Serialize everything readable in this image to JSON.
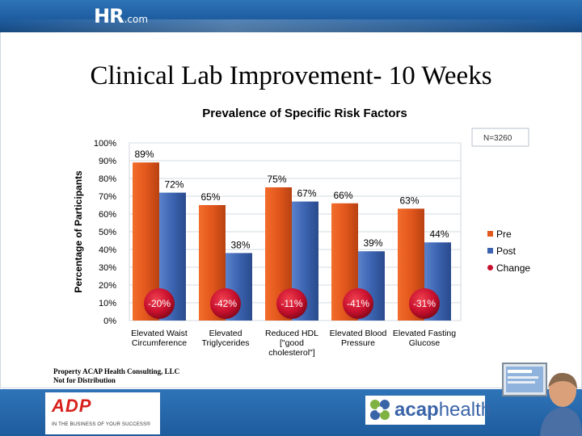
{
  "header": {
    "logo_main": "HR",
    "logo_suffix": ".com"
  },
  "slide_title": "Clinical Lab Improvement- 10 Weeks",
  "chart_data": {
    "type": "bar",
    "title": "Prevalence of Specific Risk Factors",
    "ylabel": "Percentage of Participants",
    "xlabel": "",
    "ylim": [
      0,
      100
    ],
    "y_ticks": [
      "0%",
      "10%",
      "20%",
      "30%",
      "40%",
      "50%",
      "60%",
      "70%",
      "80%",
      "90%",
      "100%"
    ],
    "categories": [
      [
        "Elevated Waist",
        "Circumference"
      ],
      [
        "Elevated",
        "Triglycerides"
      ],
      [
        "Reduced HDL",
        "[\"good",
        "cholesterol\"]"
      ],
      [
        "Elevated Blood",
        "Pressure"
      ],
      [
        "Elevated Fasting",
        "Glucose"
      ]
    ],
    "series": [
      {
        "name": "Pre",
        "values": [
          89,
          65,
          75,
          66,
          63
        ],
        "labels": [
          "89%",
          "65%",
          "75%",
          "66%",
          "63%"
        ],
        "color": "#e2571c"
      },
      {
        "name": "Post",
        "values": [
          72,
          38,
          67,
          39,
          44
        ],
        "labels": [
          "72%",
          "38%",
          "67%",
          "39%",
          "44%"
        ],
        "color": "#3b63b0"
      },
      {
        "name": "Change",
        "values": [
          -20,
          -42,
          -11,
          -41,
          -31
        ],
        "labels": [
          "-20%",
          "-42%",
          "-11%",
          "-41%",
          "-31%"
        ],
        "color": "#c8102e"
      }
    ],
    "sample_note": "N=3260",
    "legend_position": "right"
  },
  "footer": {
    "copyright_line1": "Property ACAP Health Consulting, LLC",
    "copyright_line2": "Not for Distribution",
    "adp_logo": "ADP",
    "adp_tagline": "IN THE BUSINESS OF YOUR SUCCESS®",
    "acap_logo_part1": "acap",
    "acap_logo_part2": "health"
  },
  "colors": {
    "brand_blue": "#1d5c9f",
    "pre": "#e2571c",
    "post": "#3b63b0",
    "change": "#c8102e"
  }
}
